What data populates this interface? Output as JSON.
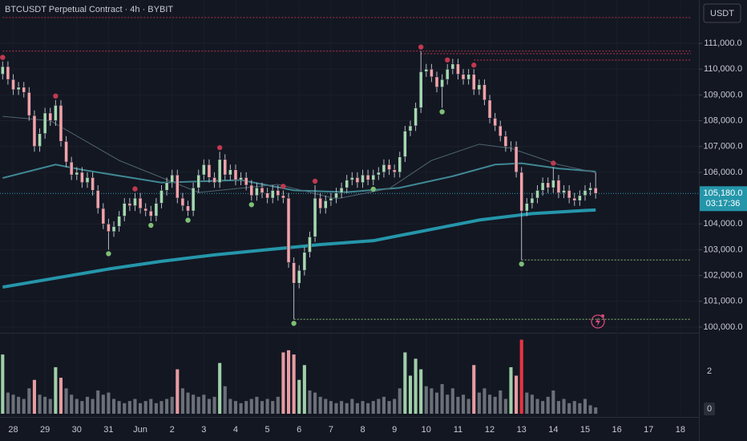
{
  "chart_data": {
    "type": "candlestick",
    "title": "BTCUSDT Perpetual Contract · 4h · BYBIT",
    "currency": "USDT",
    "last_price_label": "105,180.0",
    "countdown": "03:17:36",
    "categories": [
      null,
      null,
      "28",
      null,
      null,
      null,
      null,
      null,
      "29",
      null,
      null,
      null,
      null,
      null,
      "30",
      null,
      null,
      null,
      null,
      null,
      "31",
      null,
      null,
      null,
      null,
      null,
      "Jun",
      null,
      null,
      null,
      null,
      null,
      "2",
      null,
      null,
      null,
      null,
      null,
      "3",
      null,
      null,
      null,
      null,
      null,
      "4",
      null,
      null,
      null,
      null,
      null,
      "5",
      null,
      null,
      null,
      null,
      null,
      "6",
      null,
      null,
      null,
      null,
      null,
      "7",
      null,
      null,
      null,
      null,
      null,
      "8",
      null,
      null,
      null,
      null,
      null,
      "9",
      null,
      null,
      null,
      null,
      null,
      "10",
      null,
      null,
      null,
      null,
      null,
      "11",
      null,
      null,
      null,
      null,
      null,
      "12",
      null,
      null,
      null,
      null,
      null,
      "13",
      null,
      null,
      null,
      null,
      null,
      "14",
      null,
      null,
      null,
      null,
      null,
      "15",
      null,
      null,
      null,
      null,
      null,
      "16",
      null,
      null,
      null,
      null,
      null,
      "17",
      null,
      null,
      null,
      null,
      null,
      "18",
      null,
      null,
      null
    ],
    "open": [
      109800,
      110100,
      109600,
      109200,
      109300,
      109100,
      108200,
      107000,
      107500,
      108300,
      108000,
      108600,
      107200,
      106400,
      105900,
      106000,
      105600,
      105800,
      105300,
      104600,
      104000,
      103700,
      103900,
      104300,
      104800,
      104700,
      105000,
      104600,
      104500,
      104300,
      104800,
      105300,
      105600,
      105900,
      105000,
      104700,
      104500,
      105400,
      105900,
      106300,
      105800,
      105600,
      106500,
      105900,
      106100,
      105700,
      105800,
      105500,
      105100,
      105400,
      105200,
      105000,
      105300,
      105100,
      105000,
      102500,
      101700,
      102200,
      102900,
      103500,
      105000,
      104600,
      104900,
      105000,
      105200,
      105400,
      105700,
      105800,
      105600,
      105900,
      105700,
      105900,
      106000,
      106300,
      106100,
      106000,
      106600,
      107600,
      107800,
      108500,
      109900,
      110000,
      109700,
      109300,
      109600,
      110000,
      110200,
      109800,
      109600,
      109800,
      109200,
      109400,
      108800,
      108100,
      107800,
      107400,
      107000,
      107000,
      106000,
      104500,
      104800,
      105000,
      105300,
      105600,
      105400,
      105700,
      105200,
      105300,
      105000,
      104900,
      105100,
      105300,
      105400,
      null,
      null,
      null,
      null,
      null,
      null,
      null,
      null,
      null,
      null,
      null,
      null,
      null,
      null,
      null,
      null,
      null,
      null,
      null
    ],
    "high": [
      110300,
      110300,
      109800,
      109500,
      109500,
      109300,
      108400,
      107700,
      108500,
      108500,
      108800,
      108800,
      107400,
      106600,
      106200,
      106200,
      106000,
      106000,
      105500,
      104800,
      104200,
      104100,
      104500,
      105000,
      105000,
      105200,
      105200,
      104800,
      104700,
      105000,
      105500,
      105800,
      106100,
      106100,
      105200,
      104900,
      105600,
      106100,
      106500,
      106500,
      106000,
      106800,
      106700,
      106300,
      106300,
      106000,
      106000,
      105700,
      105600,
      105600,
      105400,
      105500,
      105500,
      105300,
      105200,
      102700,
      102400,
      103100,
      103700,
      105500,
      105200,
      105100,
      105200,
      105400,
      105600,
      105900,
      106000,
      106000,
      106100,
      106100,
      106100,
      106200,
      106500,
      106500,
      106300,
      106800,
      107800,
      108000,
      108700,
      110700,
      110200,
      110200,
      109900,
      109800,
      110200,
      110400,
      110400,
      110000,
      110000,
      110000,
      109600,
      109600,
      109000,
      108300,
      108000,
      107600,
      107200,
      107200,
      106200,
      105000,
      105200,
      105500,
      105800,
      105800,
      106200,
      105900,
      105500,
      105500,
      105200,
      105300,
      105500,
      105600,
      106000,
      null,
      null,
      null,
      null,
      null,
      null,
      null,
      null,
      null,
      null,
      null,
      null,
      null,
      null,
      null,
      null,
      null,
      null,
      null
    ],
    "low": [
      109600,
      109400,
      109000,
      109000,
      108900,
      108000,
      106800,
      106800,
      107300,
      107800,
      107800,
      107000,
      106200,
      105700,
      105700,
      105400,
      105400,
      105100,
      104400,
      103800,
      103000,
      103500,
      103700,
      104100,
      104500,
      104500,
      104400,
      104300,
      104100,
      104100,
      104600,
      105100,
      105400,
      104800,
      104500,
      104300,
      104300,
      105200,
      105700,
      105600,
      105400,
      105400,
      105700,
      105700,
      105500,
      105500,
      105300,
      104900,
      104900,
      105000,
      104800,
      104800,
      104900,
      104800,
      102300,
      100300,
      101500,
      102000,
      102700,
      103300,
      104400,
      104400,
      104700,
      104800,
      105000,
      105200,
      105500,
      105400,
      105400,
      105500,
      105500,
      105700,
      105800,
      105900,
      105800,
      105800,
      106400,
      107400,
      107600,
      108300,
      109700,
      109500,
      109100,
      108500,
      109400,
      109800,
      109600,
      109400,
      109400,
      109000,
      109000,
      108600,
      107900,
      107600,
      107200,
      106800,
      106800,
      105800,
      102600,
      104300,
      104600,
      104800,
      105100,
      105200,
      105200,
      105000,
      105000,
      104800,
      104700,
      104700,
      104900,
      105100,
      104980,
      null,
      null,
      null,
      null,
      null,
      null,
      null,
      null,
      null,
      null,
      null,
      null,
      null,
      null,
      null,
      null,
      null,
      null,
      null
    ],
    "close": [
      110100,
      109600,
      109200,
      109300,
      109100,
      108200,
      107000,
      107500,
      108300,
      108000,
      108600,
      107200,
      106400,
      105900,
      106000,
      105600,
      105800,
      105300,
      104600,
      104000,
      103700,
      103900,
      104300,
      104800,
      104700,
      105000,
      104600,
      104500,
      104300,
      104800,
      105300,
      105600,
      105900,
      105000,
      104700,
      104500,
      105400,
      105900,
      106300,
      105800,
      105600,
      106500,
      105900,
      106100,
      105700,
      105800,
      105500,
      105100,
      105400,
      105200,
      105000,
      105300,
      105100,
      105000,
      102500,
      101700,
      102200,
      102900,
      103500,
      105000,
      104600,
      104900,
      105000,
      105200,
      105400,
      105700,
      105800,
      105600,
      105900,
      105700,
      105900,
      106000,
      106300,
      106100,
      106000,
      106600,
      107600,
      107800,
      108500,
      109900,
      110000,
      109700,
      109300,
      109600,
      110000,
      110200,
      109800,
      109600,
      109800,
      109200,
      109400,
      108800,
      108100,
      107800,
      107400,
      107000,
      107000,
      106000,
      104500,
      104800,
      105000,
      105300,
      105600,
      105400,
      105700,
      105200,
      105300,
      105000,
      104900,
      105100,
      105300,
      105400,
      105180,
      null,
      null,
      null,
      null,
      null,
      null,
      null,
      null,
      null,
      null,
      null,
      null,
      null,
      null,
      null,
      null,
      null,
      null,
      null
    ],
    "volume": [
      2.8,
      1.0,
      0.9,
      0.8,
      0.7,
      1.2,
      1.6,
      0.9,
      0.8,
      0.7,
      2.2,
      1.7,
      1.2,
      0.9,
      0.7,
      0.6,
      0.8,
      0.7,
      1.1,
      0.9,
      1.0,
      0.7,
      0.6,
      0.5,
      0.6,
      0.7,
      0.5,
      0.6,
      0.7,
      0.5,
      0.6,
      0.7,
      0.8,
      2.1,
      1.2,
      1.0,
      0.9,
      0.8,
      0.9,
      0.7,
      0.8,
      2.4,
      1.3,
      0.7,
      0.6,
      0.5,
      0.6,
      0.7,
      0.8,
      0.6,
      0.7,
      0.6,
      0.8,
      2.9,
      3.0,
      2.8,
      1.6,
      2.3,
      1.1,
      1.0,
      0.8,
      0.7,
      0.6,
      0.5,
      0.6,
      0.5,
      0.7,
      0.5,
      0.6,
      0.5,
      0.6,
      0.7,
      0.8,
      0.6,
      0.7,
      1.2,
      2.9,
      1.8,
      2.6,
      2.1,
      1.3,
      1.2,
      1.0,
      1.4,
      0.9,
      1.2,
      0.8,
      0.9,
      0.7,
      2.3,
      1.0,
      1.2,
      0.9,
      0.8,
      1.1,
      0.7,
      2.2,
      1.8,
      3.5,
      1.0,
      0.9,
      0.7,
      0.6,
      0.8,
      1.1,
      0.6,
      0.7,
      0.5,
      0.6,
      0.5,
      0.7,
      0.4,
      0.3,
      null,
      null,
      null,
      null,
      null,
      null,
      null,
      null,
      null,
      null,
      null,
      null,
      null,
      null,
      null,
      null,
      null,
      null,
      null
    ],
    "up_color": "#a6d9b0",
    "down_color": "#f2a3a9",
    "wick_color": "#b8bcc6",
    "ylim": [
      99780,
      112680
    ],
    "yticks": [
      {
        "value": 111000,
        "label": "111,000.0"
      },
      {
        "value": 110000,
        "label": "110,000.0"
      },
      {
        "value": 109000,
        "label": "109,000.0"
      },
      {
        "value": 108000,
        "label": "108,000.0"
      },
      {
        "value": 107000,
        "label": "107,000.0"
      },
      {
        "value": 106000,
        "label": "106,000.0"
      },
      {
        "value": 104000,
        "label": "104,000.0"
      },
      {
        "value": 103000,
        "label": "103,000.0"
      },
      {
        "value": 102000,
        "label": "102,000.0"
      },
      {
        "value": 101000,
        "label": "101,000.0"
      },
      {
        "value": 100000,
        "label": "100,000.0"
      }
    ],
    "volume_lim": [
      0,
      3.6
    ],
    "volume_ticks": [
      2,
      0
    ],
    "grid": true,
    "series": [
      {
        "color": "#2596aa",
        "width": 4,
        "x": [
          0,
          10,
          20,
          30,
          40,
          50,
          60,
          70,
          80,
          90,
          100,
          110,
          112
        ],
        "values": [
          101550,
          101900,
          102250,
          102550,
          102800,
          103000,
          103200,
          103350,
          103750,
          104150,
          104400,
          104520,
          104540
        ]
      },
      {
        "color": "#3f8793",
        "width": 2,
        "x": [
          0,
          10,
          15,
          30,
          45,
          55,
          65,
          75,
          85,
          93,
          98,
          105,
          112
        ],
        "values": [
          105780,
          106300,
          106100,
          105600,
          105700,
          105300,
          105230,
          105400,
          105850,
          106300,
          106350,
          106150,
          106030
        ]
      },
      {
        "color": "#4d6470",
        "width": 1,
        "x": [
          0,
          9,
          22,
          37,
          52,
          63,
          73,
          81,
          90,
          96,
          105,
          112
        ],
        "values": [
          108170,
          108000,
          106460,
          105220,
          105530,
          104970,
          105370,
          106460,
          107090,
          106930,
          106300,
          105990
        ]
      }
    ],
    "levels": [
      {
        "value": 112000,
        "color": "#8c2f3f",
        "from": 0
      },
      {
        "value": 110700,
        "color": "#a8324a",
        "from": 0
      },
      {
        "value": 110600,
        "color": "#a8324a",
        "from": 79
      },
      {
        "value": 110350,
        "color": "#a8324a",
        "from": 89
      },
      {
        "value": 102600,
        "color": "#6f9f62",
        "from": 98
      },
      {
        "value": 100300,
        "color": "#6f9f62",
        "from": 55
      }
    ],
    "pivot_highs": [
      0,
      10,
      25,
      41,
      53,
      59,
      79,
      84,
      89,
      104
    ],
    "pivot_lows": [
      20,
      28,
      35,
      47,
      55,
      70,
      83,
      98
    ],
    "pivot_high_color": "#c0394f",
    "pivot_low_color": "#7fbf76"
  }
}
